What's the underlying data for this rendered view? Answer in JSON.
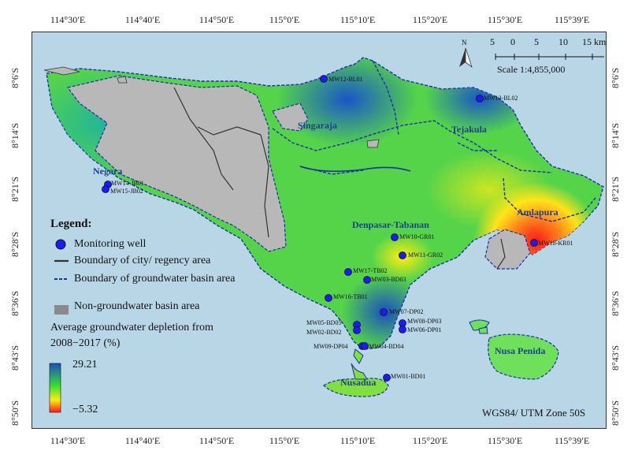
{
  "axes": {
    "lon_top": [
      "114°30′E",
      "114°40′E",
      "114°50′E",
      "115°0′E",
      "115°10′E",
      "115°20′E",
      "115°30′E",
      "115°39′E"
    ],
    "lon_bottom": [
      "114°30′E",
      "114°40′E",
      "114°50′E",
      "115°0′E",
      "115°10′E",
      "115°20′E",
      "115°30′E",
      "115°39′E"
    ],
    "lat_left": [
      "8°6′S",
      "8°14′S",
      "8°21′S",
      "8°28′S",
      "8°36′S",
      "8°43′S",
      "8°50′S"
    ],
    "lat_right": [
      "8°6′S",
      "8°14′S",
      "8°21′S",
      "8°28′S",
      "8°36′S",
      "8°43′S",
      "8°50′S"
    ]
  },
  "places": {
    "singaraja": "Singaraja",
    "tejakula": "Tejakula",
    "negara": "Negara",
    "amlapura": "Amlapura",
    "denpasar": "Denpasar-Tabanan",
    "nusa_penida": "Nusa Penida",
    "nusadua": "Nusadua"
  },
  "wells": [
    {
      "id": "MW12-BL01"
    },
    {
      "id": "MW13-BL02"
    },
    {
      "id": "MW14-JB01"
    },
    {
      "id": "MW15-JB02"
    },
    {
      "id": "MW18-KR01"
    },
    {
      "id": "MW10-GR01"
    },
    {
      "id": "MW11-GR02"
    },
    {
      "id": "MW17-TB02"
    },
    {
      "id": "MW03-BD03"
    },
    {
      "id": "MW16-TB01"
    },
    {
      "id": "MW07-DP02"
    },
    {
      "id": "MW05-BD05"
    },
    {
      "id": "MW02-BD02"
    },
    {
      "id": "MW08-DP03"
    },
    {
      "id": "MW06-DP01"
    },
    {
      "id": "MW09-DP04"
    },
    {
      "id": "MW04-BD04"
    },
    {
      "id": "MW01-BD01"
    }
  ],
  "legend": {
    "title": "Legend:",
    "monitoring_well": "Monitoring well",
    "boundary_city": "Boundary of city/ regency area",
    "boundary_basin": "Boundary of groundwater basin area",
    "non_basin": "Non-groundwater basin area",
    "gradient_title_line1": "Average groundwater depletion from",
    "gradient_title_line2": "2008−2017 (%)",
    "gradient_max": "29.21",
    "gradient_min": "−5.32"
  },
  "scale": {
    "north": "N",
    "ticks": [
      "5",
      "0",
      "5",
      "10",
      "15 km"
    ],
    "ratio": "Scale 1:4,855,000"
  },
  "crs": "WGS84/ UTM Zone 50S",
  "colors": {
    "sea": "#b9d6e6",
    "non_basin": "#b8b8b8",
    "well": "#1a1aff",
    "basin_boundary": "#1a2fa8",
    "city_boundary": "#333333",
    "gradient_high": "#1a4fc0",
    "gradient_mid": "#33dd33",
    "gradient_low": "#ff2020"
  }
}
